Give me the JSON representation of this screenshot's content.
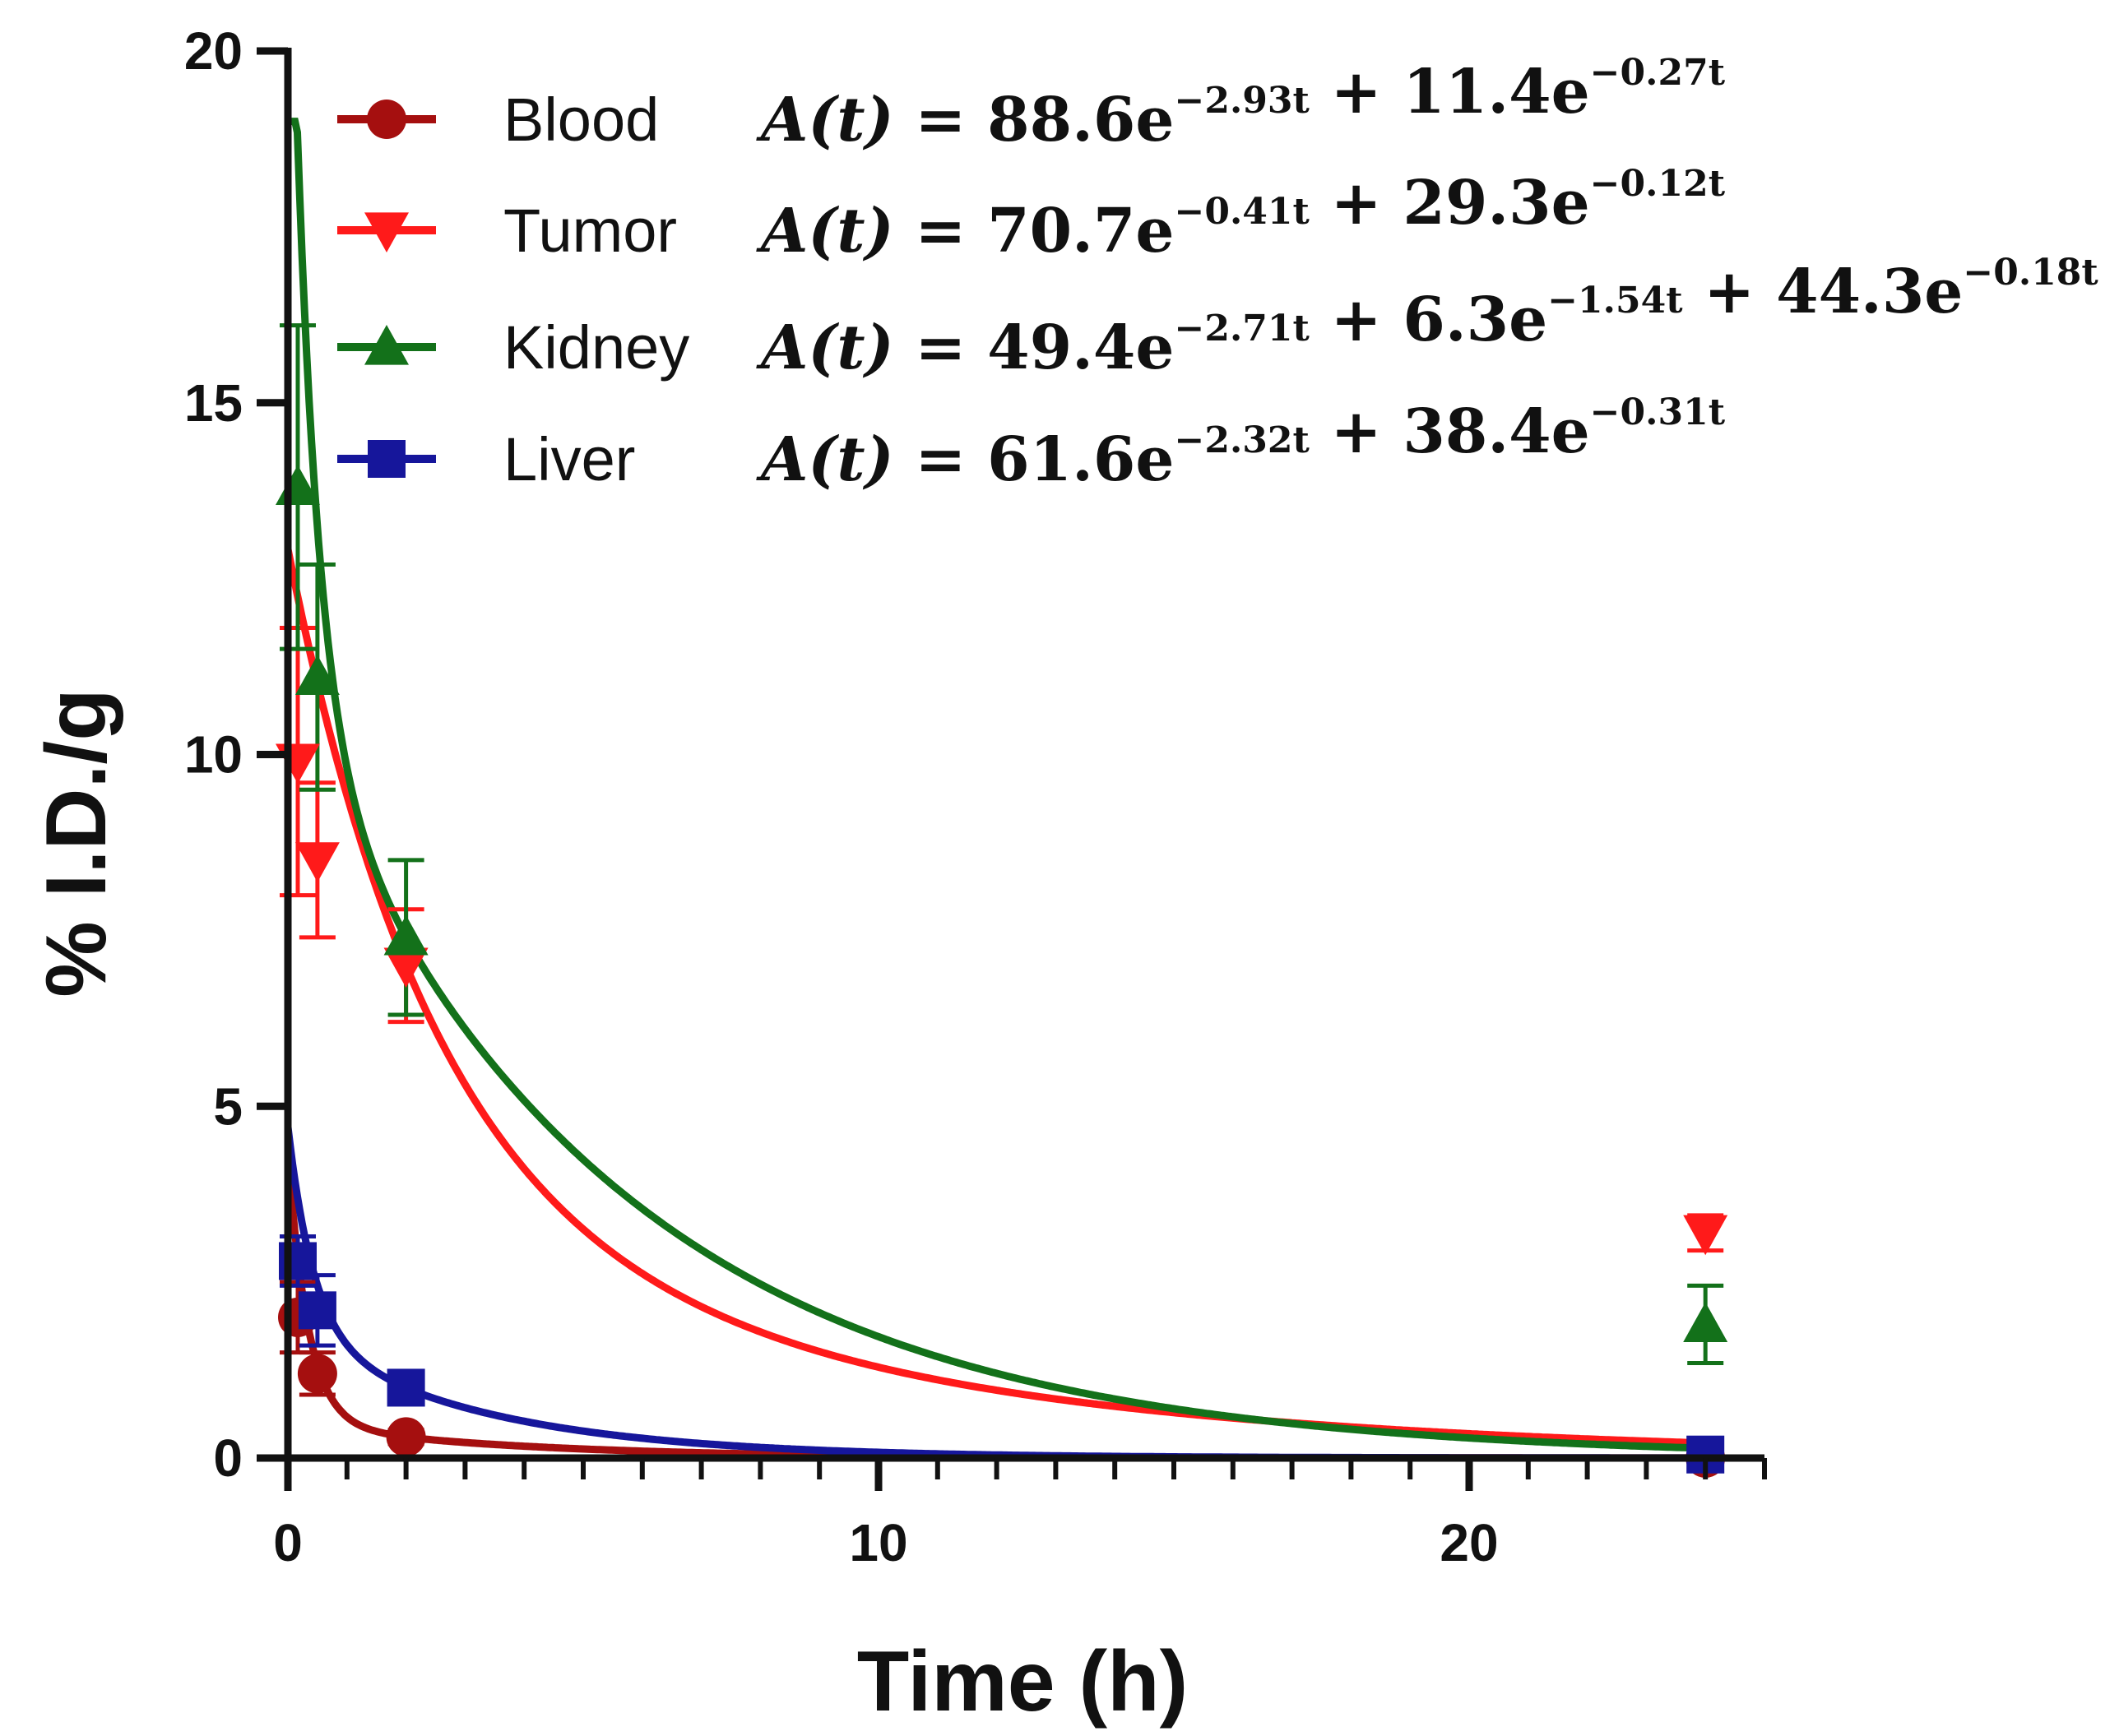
{
  "chart_data": {
    "type": "line",
    "xlabel": "Time (h)",
    "ylabel": "% I.D./g",
    "xlim": [
      0,
      25
    ],
    "ylim": [
      0,
      20
    ],
    "x_ticks": [
      0,
      10,
      20
    ],
    "x_minor_step": 1,
    "y_ticks": [
      0,
      5,
      10,
      15,
      20
    ],
    "legend_position": "top-left",
    "series": [
      {
        "name": "Blood",
        "color": "#a50f0f",
        "marker": "circle",
        "x": [
          0.167,
          0.5,
          2,
          24
        ],
        "y": [
          2.0,
          1.2,
          0.3,
          0.0
        ],
        "err": [
          0.5,
          0.3,
          0.1,
          0.05
        ],
        "fit": {
          "coef": [
            88.6,
            11.4
          ],
          "rate": [
            2.93,
            0.27
          ]
        },
        "equation": {
          "lhs": "A(t) = ",
          "terms": [
            {
              "sign": "",
              "coef": "88.6e",
              "exp": "−2.93t"
            },
            {
              "sign": " + ",
              "coef": "11.4e",
              "exp": "−0.27t"
            }
          ]
        }
      },
      {
        "name": "Tumor",
        "color": "#ff1a1a",
        "marker": "triangle-down",
        "x": [
          0.167,
          0.5,
          2,
          24
        ],
        "y": [
          9.9,
          8.5,
          7.0,
          3.2
        ],
        "err": [
          1.9,
          1.1,
          0.8,
          0.25
        ],
        "fit": {
          "coef": [
            70.7,
            29.3
          ],
          "rate": [
            0.41,
            0.12
          ]
        },
        "equation": {
          "lhs": "A(t) = ",
          "terms": [
            {
              "sign": "",
              "coef": "70.7e",
              "exp": "−0.41t"
            },
            {
              "sign": " + ",
              "coef": "29.3e",
              "exp": "−0.12t"
            }
          ]
        }
      },
      {
        "name": "Kidney",
        "color": "#13711a",
        "marker": "triangle-up",
        "x": [
          0.167,
          0.5,
          2,
          24
        ],
        "y": [
          13.8,
          11.1,
          7.4,
          1.9
        ],
        "err": [
          2.3,
          1.6,
          1.1,
          0.55
        ],
        "fit": {
          "coef": [
            49.4,
            6.3,
            44.3
          ],
          "rate": [
            2.71,
            1.54,
            0.18
          ]
        },
        "equation": {
          "lhs": "A(t) = ",
          "terms": [
            {
              "sign": "",
              "coef": "49.4e",
              "exp": "−2.71t"
            },
            {
              "sign": " + ",
              "coef": "6.3e",
              "exp": "−1.54t"
            },
            {
              "sign": " + ",
              "coef": "44.3e",
              "exp": "−0.18t"
            }
          ]
        }
      },
      {
        "name": "Liver",
        "color": "#16169b",
        "marker": "square",
        "x": [
          0.167,
          0.5,
          2,
          24
        ],
        "y": [
          2.8,
          2.1,
          1.0,
          0.05
        ],
        "err": [
          0.35,
          0.5,
          0.1,
          0.05
        ],
        "fit": {
          "coef": [
            61.6,
            38.4
          ],
          "rate": [
            2.32,
            0.31
          ]
        },
        "equation": {
          "lhs": "A(t) = ",
          "terms": [
            {
              "sign": "",
              "coef": "61.6e",
              "exp": "−2.32t"
            },
            {
              "sign": " + ",
              "coef": "38.4e",
              "exp": "−0.31t"
            }
          ]
        }
      }
    ]
  }
}
